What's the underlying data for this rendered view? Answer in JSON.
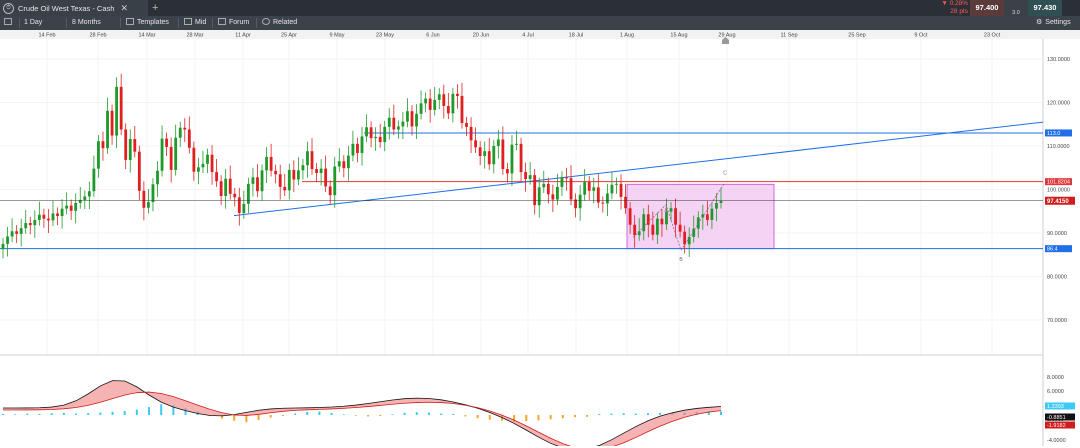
{
  "tab": {
    "icon": "clock-icon",
    "title": "Crude Oil West Texas - Cash",
    "close": "✕",
    "add": "+"
  },
  "quote": {
    "change_pct": "▼ 0.28%",
    "change_pts": "28 pts",
    "sell": "97.400",
    "buy": "97.430",
    "spread": "3.0"
  },
  "toolbar": {
    "interval": "1 Day",
    "range": "8 Months",
    "templates": "Templates",
    "price_type": "Mid",
    "forum": "Forum",
    "related": "Related",
    "settings": "Settings"
  },
  "colors": {
    "up": "#1e9a2a",
    "down": "#e02020",
    "hline_blue": "#1f6fe8",
    "hline_red": "#e0393b",
    "box_fill": "#f3c8f3",
    "box_stroke": "#c24ad0",
    "macd_up": "#3ccaf5",
    "macd_down": "#f5a623"
  },
  "chart_data": {
    "type": "candlestick",
    "instrument": "Crude Oil West Texas - Cash",
    "interval": "1 Day",
    "x_ticks": [
      "14 Feb",
      "28 Feb",
      "14 Mar",
      "28 Mar",
      "11 Apr",
      "25 Apr",
      "9 May",
      "23 May",
      "6 Jun",
      "20 Jun",
      "4 Jul",
      "18 Jul",
      "1 Aug",
      "15 Aug",
      "29 Aug",
      "11 Sep",
      "25 Sep",
      "9 Oct",
      "23 Oct"
    ],
    "y_ticks": [
      "130.0000",
      "120.0000",
      "110.0000",
      "100.0000",
      "90.0000",
      "80.0000",
      "70.0000"
    ],
    "ylim": [
      64,
      135
    ],
    "current_price": "97.4150",
    "horizontal_lines": [
      {
        "value": 113.0,
        "label": "113.0",
        "color": "blue"
      },
      {
        "value": 101.8,
        "label": "101.8204",
        "color": "red"
      },
      {
        "value": 86.4,
        "label": "86.4",
        "color": "blue"
      }
    ],
    "trendline": {
      "from": [
        "11 Apr",
        94.0
      ],
      "to": [
        "23 Oct+",
        115.5
      ]
    },
    "highlight_box": {
      "from": "1 Aug",
      "to": "29 Aug",
      "low": 86.4,
      "high": 101.2
    },
    "wave_labels": [
      "A",
      "B",
      "C"
    ],
    "closes": [
      87.5,
      89.2,
      90.4,
      89.8,
      91.1,
      92.3,
      91.8,
      93.0,
      94.2,
      93.3,
      92.9,
      94.5,
      93.9,
      95.6,
      96.3,
      95.1,
      96.9,
      97.6,
      98.4,
      99.6,
      104.8,
      111.1,
      109.5,
      118.1,
      112.4,
      123.6,
      113.8,
      106.8,
      111.6,
      108.7,
      99.7,
      95.8,
      97.1,
      101.2,
      104.3,
      111.7,
      109.8,
      104.5,
      111.9,
      114.2,
      113.8,
      109.6,
      104.1,
      105.1,
      105.9,
      108.0,
      104.0,
      101.9,
      98.5,
      102.5,
      99.0,
      98.2,
      94.6,
      96.7,
      101.3,
      102.8,
      99.6,
      104.4,
      107.5,
      104.3,
      103.5,
      100.6,
      99.8,
      104.5,
      102.3,
      104.4,
      105.6,
      108.8,
      104.7,
      103.8,
      104.8,
      100.7,
      98.7,
      105.3,
      106.5,
      104.9,
      107.8,
      110.5,
      108.4,
      112.2,
      114.3,
      111.8,
      112.1,
      110.9,
      114.4,
      116.5,
      113.8,
      114.5,
      115.6,
      118.0,
      114.5,
      117.4,
      119.8,
      120.9,
      118.3,
      120.6,
      121.9,
      119.2,
      117.5,
      122.0,
      121.5,
      115.3,
      114.4,
      111.3,
      109.7,
      107.7,
      108.8,
      105.8,
      110.0,
      111.5,
      104.7,
      103.7,
      110.3,
      110.5,
      104.0,
      102.4,
      103.3,
      96.4,
      100.5,
      101.3,
      98.9,
      97.7,
      100.6,
      102.8,
      102.6,
      97.7,
      95.7,
      98.8,
      101.7,
      99.7,
      100.5,
      97.0,
      96.8,
      99.1,
      101.1,
      101.3,
      98.3,
      95.7,
      91.9,
      89.5,
      90.4,
      94.3,
      91.9,
      89.6,
      93.3,
      92.0,
      94.9,
      95.7,
      91.9,
      90.3,
      87.4,
      89.1,
      91.0,
      93.6,
      94.3,
      93.0,
      95.6,
      96.9,
      97.4
    ]
  },
  "macd_axis": {
    "ticks": [
      "8.0000",
      "6.0000",
      "4.0000",
      "2.0000",
      "-4.0000"
    ],
    "labels": [
      "1.2393",
      "-0.8851",
      "-1.9182"
    ]
  }
}
